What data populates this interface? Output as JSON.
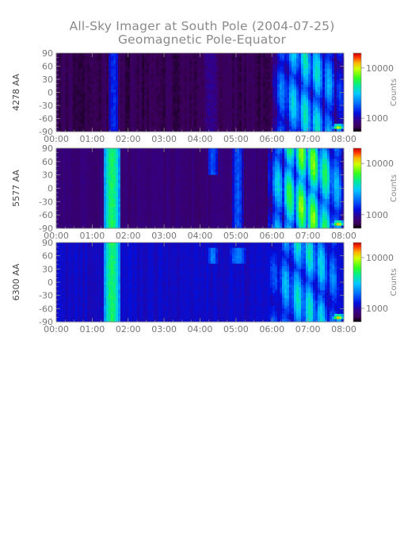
{
  "title": "All-Sky Imager at South Pole (2004-07-25)",
  "subtitle": "Geomagnetic Pole-Equator",
  "chart_data": [
    {
      "type": "heatmap",
      "ylabel": "4278 AA",
      "x_ticks": [
        "00:00",
        "01:00",
        "02:00",
        "03:00",
        "04:00",
        "05:00",
        "06:00",
        "07:00",
        "08:00"
      ],
      "y_ticks": [
        90,
        60,
        30,
        0,
        -30,
        -60,
        -90
      ],
      "ylim": [
        -90,
        90
      ],
      "colorbar": {
        "label": "Counts",
        "ticks": [
          "10000",
          "1000"
        ],
        "scale": "log"
      },
      "features": {
        "background_level": 0.03,
        "bursts": [
          {
            "t_start": 1.45,
            "t_end": 1.75,
            "peak": 0.25,
            "lat_min": -90,
            "lat_max": 90
          },
          {
            "t_start": 4.1,
            "t_end": 4.5,
            "peak": 0.12,
            "lat_min": -90,
            "lat_max": 90
          },
          {
            "t_start": 6.0,
            "t_end": 8.0,
            "peak": 0.55,
            "lat_min": -90,
            "lat_max": 90
          }
        ],
        "hotspot": {
          "t": 7.85,
          "lat": -80,
          "peak": 0.9
        }
      }
    },
    {
      "type": "heatmap",
      "ylabel": "5577 AA",
      "x_ticks": [
        "00:00",
        "01:00",
        "02:00",
        "03:00",
        "04:00",
        "05:00",
        "06:00",
        "07:00",
        "08:00"
      ],
      "y_ticks": [
        90,
        60,
        30,
        0,
        -30,
        -60,
        -90
      ],
      "ylim": [
        -90,
        90
      ],
      "colorbar": {
        "label": "Counts",
        "ticks": [
          "10000",
          "1000"
        ],
        "scale": "log"
      },
      "features": {
        "background_level": 0.08,
        "bursts": [
          {
            "t_start": 1.3,
            "t_end": 1.8,
            "peak": 0.6,
            "lat_min": -90,
            "lat_max": 90
          },
          {
            "t_start": 4.2,
            "t_end": 4.5,
            "peak": 0.3,
            "lat_min": 30,
            "lat_max": 90
          },
          {
            "t_start": 4.9,
            "t_end": 5.2,
            "peak": 0.3,
            "lat_min": -90,
            "lat_max": 90
          },
          {
            "t_start": 5.9,
            "t_end": 8.0,
            "peak": 0.75,
            "lat_min": -90,
            "lat_max": 90
          }
        ],
        "hotspot": {
          "t": 7.85,
          "lat": -80,
          "peak": 0.95
        }
      }
    },
    {
      "type": "heatmap",
      "ylabel": "6300 AA",
      "x_ticks": [
        "00:00",
        "01:00",
        "02:00",
        "03:00",
        "04:00",
        "05:00",
        "06:00",
        "07:00",
        "08:00"
      ],
      "y_ticks": [
        90,
        60,
        30,
        0,
        -30,
        -60,
        -90
      ],
      "ylim": [
        -90,
        90
      ],
      "colorbar": {
        "label": "Counts",
        "ticks": [
          "10000",
          "1000"
        ],
        "scale": "log"
      },
      "features": {
        "background_level": 0.18,
        "bursts": [
          {
            "t_start": 1.3,
            "t_end": 1.8,
            "peak": 0.6,
            "lat_min": -90,
            "lat_max": 90
          },
          {
            "t_start": 4.2,
            "t_end": 4.5,
            "peak": 0.35,
            "lat_min": 45,
            "lat_max": 75
          },
          {
            "t_start": 4.8,
            "t_end": 5.3,
            "peak": 0.35,
            "lat_min": 45,
            "lat_max": 75
          },
          {
            "t_start": 5.9,
            "t_end": 8.0,
            "peak": 0.55,
            "lat_min": -90,
            "lat_max": 90
          }
        ],
        "hotspot": {
          "t": 7.85,
          "lat": -80,
          "peak": 0.95
        }
      }
    }
  ]
}
